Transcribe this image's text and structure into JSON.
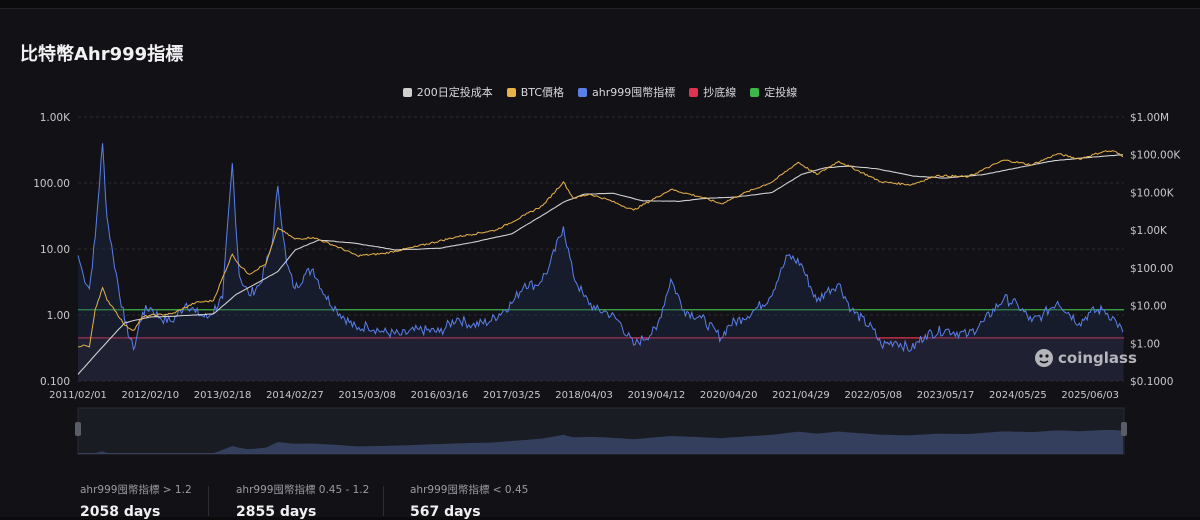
{
  "title": "比特幣Ahr999指標",
  "legend": [
    {
      "label": "200日定投成本",
      "color": "#d0d0d0"
    },
    {
      "label": "BTC價格",
      "color": "#e8b24a"
    },
    {
      "label": "ahr999囤幣指標",
      "color": "#5b7fe8"
    },
    {
      "label": "抄底線",
      "color": "#e0334f"
    },
    {
      "label": "定投線",
      "color": "#3cb54a"
    }
  ],
  "watermark": "coinglass",
  "stats": [
    {
      "label": "ahr999囤幣指標 > 1.2",
      "value": "2058 days"
    },
    {
      "label": "ahr999囤幣指標 0.45 - 1.2",
      "value": "2855 days"
    },
    {
      "label": "ahr999囤幣指標 < 0.45",
      "value": "567 days"
    }
  ],
  "chart_data": {
    "type": "line",
    "scale": "log",
    "left_axis": {
      "ticks": [
        "0.100",
        "1.00",
        "10.00",
        "100.00",
        "1.00K"
      ],
      "values": [
        0.1,
        1,
        10,
        100,
        1000
      ]
    },
    "right_axis": {
      "ticks": [
        "$0.1000",
        "$1.00",
        "$10.00",
        "$100.00",
        "$1.00K",
        "$10.00K",
        "$100.00K",
        "$1.00M"
      ],
      "values": [
        0.1,
        1,
        10,
        100,
        1000,
        10000,
        100000,
        1000000
      ]
    },
    "x_ticks": [
      "2011/02/01",
      "2012/02/10",
      "2013/02/18",
      "2014/02/27",
      "2015/03/08",
      "2016/03/16",
      "2017/03/25",
      "2018/04/03",
      "2019/04/12",
      "2020/04/20",
      "2021/04/29",
      "2022/05/08",
      "2023/05/17",
      "2024/05/25",
      "2025/06/03"
    ],
    "reference_lines": [
      {
        "name": "定投線",
        "value": 1.2,
        "color": "#3cb54a"
      },
      {
        "name": "抄底線",
        "value": 0.45,
        "color": "#e0334f"
      }
    ],
    "series": [
      {
        "name": "ahr999囤幣指標",
        "axis": "left",
        "color": "#5b7fe8",
        "x": [
          "2011-02-01",
          "2011-03-01",
          "2011-04-01",
          "2011-05-01",
          "2011-06-08",
          "2011-07-01",
          "2011-08-01",
          "2011-10-01",
          "2011-11-15",
          "2012-01-01",
          "2012-02-10",
          "2012-04-01",
          "2012-06-01",
          "2012-08-15",
          "2012-10-01",
          "2012-12-01",
          "2013-02-18",
          "2013-04-09",
          "2013-05-15",
          "2013-07-05",
          "2013-09-01",
          "2013-11-01",
          "2013-12-01",
          "2014-01-15",
          "2014-02-27",
          "2014-04-15",
          "2014-06-01",
          "2014-08-01",
          "2014-10-01",
          "2015-01-15",
          "2015-03-08",
          "2015-06-01",
          "2015-09-01",
          "2015-12-01",
          "2016-03-16",
          "2016-06-15",
          "2016-09-01",
          "2016-12-01",
          "2017-03-25",
          "2017-06-01",
          "2017-08-01",
          "2017-10-01",
          "2017-12-17",
          "2018-02-06",
          "2018-04-03",
          "2018-06-01",
          "2018-08-01",
          "2018-10-01",
          "2018-12-15",
          "2019-04-12",
          "2019-06-26",
          "2019-09-01",
          "2019-12-01",
          "2020-03-13",
          "2020-04-20",
          "2020-07-01",
          "2020-09-01",
          "2020-11-15",
          "2021-01-08",
          "2021-02-21",
          "2021-04-29",
          "2021-07-20",
          "2021-09-01",
          "2021-11-10",
          "2022-01-15",
          "2022-05-08",
          "2022-06-18",
          "2022-09-01",
          "2022-11-21",
          "2023-02-01",
          "2023-05-17",
          "2023-09-11",
          "2023-12-01",
          "2024-03-14",
          "2024-05-25",
          "2024-08-05",
          "2024-10-01",
          "2024-12-17",
          "2025-04-08",
          "2025-06-03",
          "2025-08-14",
          "2025-10-15",
          "2025-11-20"
        ],
        "values": [
          8,
          4,
          2.5,
          15,
          400,
          30,
          8,
          0.8,
          0.3,
          1.1,
          1.3,
          0.9,
          0.8,
          1.5,
          1.1,
          0.9,
          1.8,
          200,
          4,
          2,
          3,
          12,
          90,
          6,
          2.5,
          4,
          5,
          2,
          1.2,
          0.6,
          0.7,
          0.55,
          0.5,
          0.6,
          0.55,
          0.9,
          0.7,
          0.8,
          1.5,
          3,
          2.8,
          5,
          22,
          4,
          1.9,
          1.2,
          1.1,
          0.8,
          0.35,
          0.6,
          3.5,
          1.2,
          0.9,
          0.45,
          0.7,
          0.9,
          1.2,
          1.8,
          4,
          8,
          6,
          1.6,
          2.2,
          3,
          1.2,
          0.6,
          0.35,
          0.4,
          0.3,
          0.5,
          0.6,
          0.5,
          0.8,
          1.8,
          1.4,
          0.8,
          1,
          1.6,
          0.75,
          1.1,
          1.2,
          0.8,
          0.55
        ]
      },
      {
        "name": "BTC價格",
        "axis": "right",
        "color": "#e8b24a",
        "x": [
          "2011-02-01",
          "2011-03-01",
          "2011-04-01",
          "2011-05-01",
          "2011-06-08",
          "2011-07-01",
          "2011-08-01",
          "2011-10-01",
          "2011-11-15",
          "2012-01-01",
          "2012-02-10",
          "2012-06-01",
          "2012-10-01",
          "2013-01-01",
          "2013-04-09",
          "2013-05-15",
          "2013-07-05",
          "2013-10-01",
          "2013-12-01",
          "2014-02-27",
          "2014-06-01",
          "2014-10-01",
          "2015-01-15",
          "2015-06-01",
          "2015-11-01",
          "2016-06-15",
          "2017-01-01",
          "2017-06-01",
          "2017-09-01",
          "2017-12-17",
          "2018-02-06",
          "2018-05-01",
          "2018-08-01",
          "2018-12-15",
          "2019-06-26",
          "2019-12-01",
          "2020-03-13",
          "2020-07-01",
          "2020-12-01",
          "2021-04-14",
          "2021-07-20",
          "2021-11-10",
          "2022-06-18",
          "2022-11-21",
          "2023-04-01",
          "2023-09-11",
          "2024-03-14",
          "2024-08-05",
          "2024-12-17",
          "2025-04-08",
          "2025-08-14",
          "2025-10-06",
          "2025-11-20"
        ],
        "values": [
          0.8,
          0.9,
          0.8,
          8,
          30,
          14,
          9,
          3,
          2.2,
          5,
          5.5,
          6,
          12,
          13.5,
          230,
          120,
          68,
          130,
          1150,
          580,
          640,
          370,
          210,
          240,
          350,
          670,
          1000,
          2500,
          4500,
          19000,
          7000,
          9000,
          6500,
          3400,
          12000,
          7500,
          5000,
          9200,
          19000,
          63000,
          30000,
          67000,
          19000,
          16000,
          28000,
          26000,
          72000,
          54000,
          106000,
          77000,
          123000,
          124000,
          88000
        ]
      },
      {
        "name": "200日定投成本",
        "axis": "right",
        "color": "#d0d0d0",
        "x": [
          "2011-02-01",
          "2011-06-08",
          "2011-10-01",
          "2012-02-10",
          "2012-06-01",
          "2013-01-01",
          "2013-05-01",
          "2013-12-01",
          "2014-03-01",
          "2014-07-01",
          "2015-01-01",
          "2015-08-01",
          "2016-03-16",
          "2016-09-01",
          "2017-03-25",
          "2017-09-01",
          "2017-12-17",
          "2018-04-03",
          "2018-09-01",
          "2019-02-01",
          "2019-08-01",
          "2020-01-01",
          "2020-06-01",
          "2020-12-01",
          "2021-05-01",
          "2021-09-01",
          "2022-01-01",
          "2022-06-01",
          "2022-12-01",
          "2023-05-17",
          "2023-12-01",
          "2024-05-25",
          "2024-12-01",
          "2025-06-03",
          "2025-11-20"
        ],
        "values": [
          0.15,
          0.8,
          3.5,
          5,
          5.2,
          6,
          20,
          80,
          300,
          550,
          450,
          300,
          330,
          470,
          800,
          2500,
          5500,
          9000,
          9500,
          6000,
          5800,
          7000,
          7600,
          10000,
          30000,
          45000,
          50000,
          42000,
          27000,
          24000,
          30000,
          45000,
          70000,
          85000,
          100000
        ]
      }
    ]
  }
}
